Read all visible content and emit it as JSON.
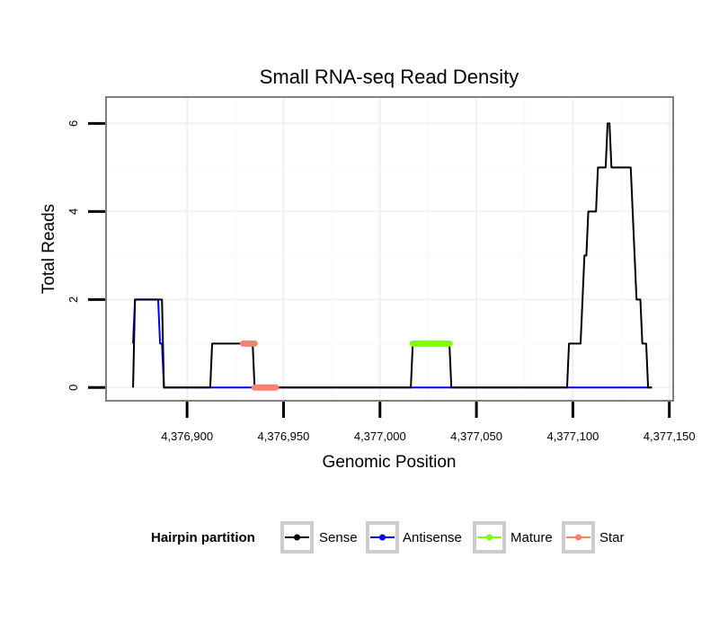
{
  "chart_data": {
    "type": "line",
    "title": "Small RNA-seq Read Density",
    "xlabel": "Genomic Position",
    "ylabel": "Total Reads",
    "xlim": [
      4376858,
      4377152
    ],
    "ylim": [
      -0.3,
      6.6
    ],
    "x_ticks": [
      4376900,
      4376950,
      4377000,
      4377050,
      4377100,
      4377150
    ],
    "x_tick_labels": [
      "4,376,900",
      "4,376,950",
      "4,377,000",
      "4,377,050",
      "4,377,100",
      "4,377,150"
    ],
    "y_ticks": [
      0,
      2,
      4,
      6
    ],
    "y_tick_labels": [
      "0",
      "2",
      "4",
      "6"
    ],
    "grid": true,
    "legend": {
      "title": "Hairpin partition",
      "position": "bottom",
      "entries": [
        "Sense",
        "Antisense",
        "Mature",
        "Star"
      ]
    },
    "series": [
      {
        "name": "Antisense",
        "color": "#0000ff",
        "style": "line",
        "x": [
          4376872,
          4376873,
          4376885,
          4376886,
          4376887,
          4376888,
          4377141
        ],
        "y": [
          1,
          2,
          2,
          1,
          1,
          0,
          0
        ]
      },
      {
        "name": "Sense",
        "color": "#000000",
        "style": "line",
        "x": [
          4376872,
          4376873,
          4376887,
          4376888,
          4376912,
          4376913,
          4376934,
          4376935,
          4377016,
          4377017,
          4377036,
          4377037,
          4377097,
          4377098,
          4377104,
          4377105,
          4377106,
          4377107,
          4377108,
          4377112,
          4377113,
          4377117,
          4377118,
          4377119,
          4377120,
          4377122,
          4377130,
          4377131,
          4377132,
          4377133,
          4377135,
          4377136,
          4377138,
          4377139,
          4377141
        ],
        "y": [
          0,
          2,
          2,
          0,
          0,
          1,
          1,
          0,
          0,
          1,
          1,
          0,
          0,
          1,
          1,
          2,
          3,
          3,
          4,
          4,
          5,
          5,
          6,
          6,
          5,
          5,
          5,
          4,
          3,
          2,
          2,
          1,
          1,
          0,
          0
        ]
      },
      {
        "name": "Mature",
        "color": "#7fff00",
        "style": "thick",
        "segments": [
          {
            "x": [
              4377017,
              4377036
            ],
            "y": 1
          }
        ]
      },
      {
        "name": "Star",
        "color": "#fa8072",
        "style": "thick",
        "segments": [
          {
            "x": [
              4376929,
              4376935
            ],
            "y": 1
          },
          {
            "x": [
              4376935,
              4376946
            ],
            "y": 0
          }
        ]
      }
    ]
  }
}
